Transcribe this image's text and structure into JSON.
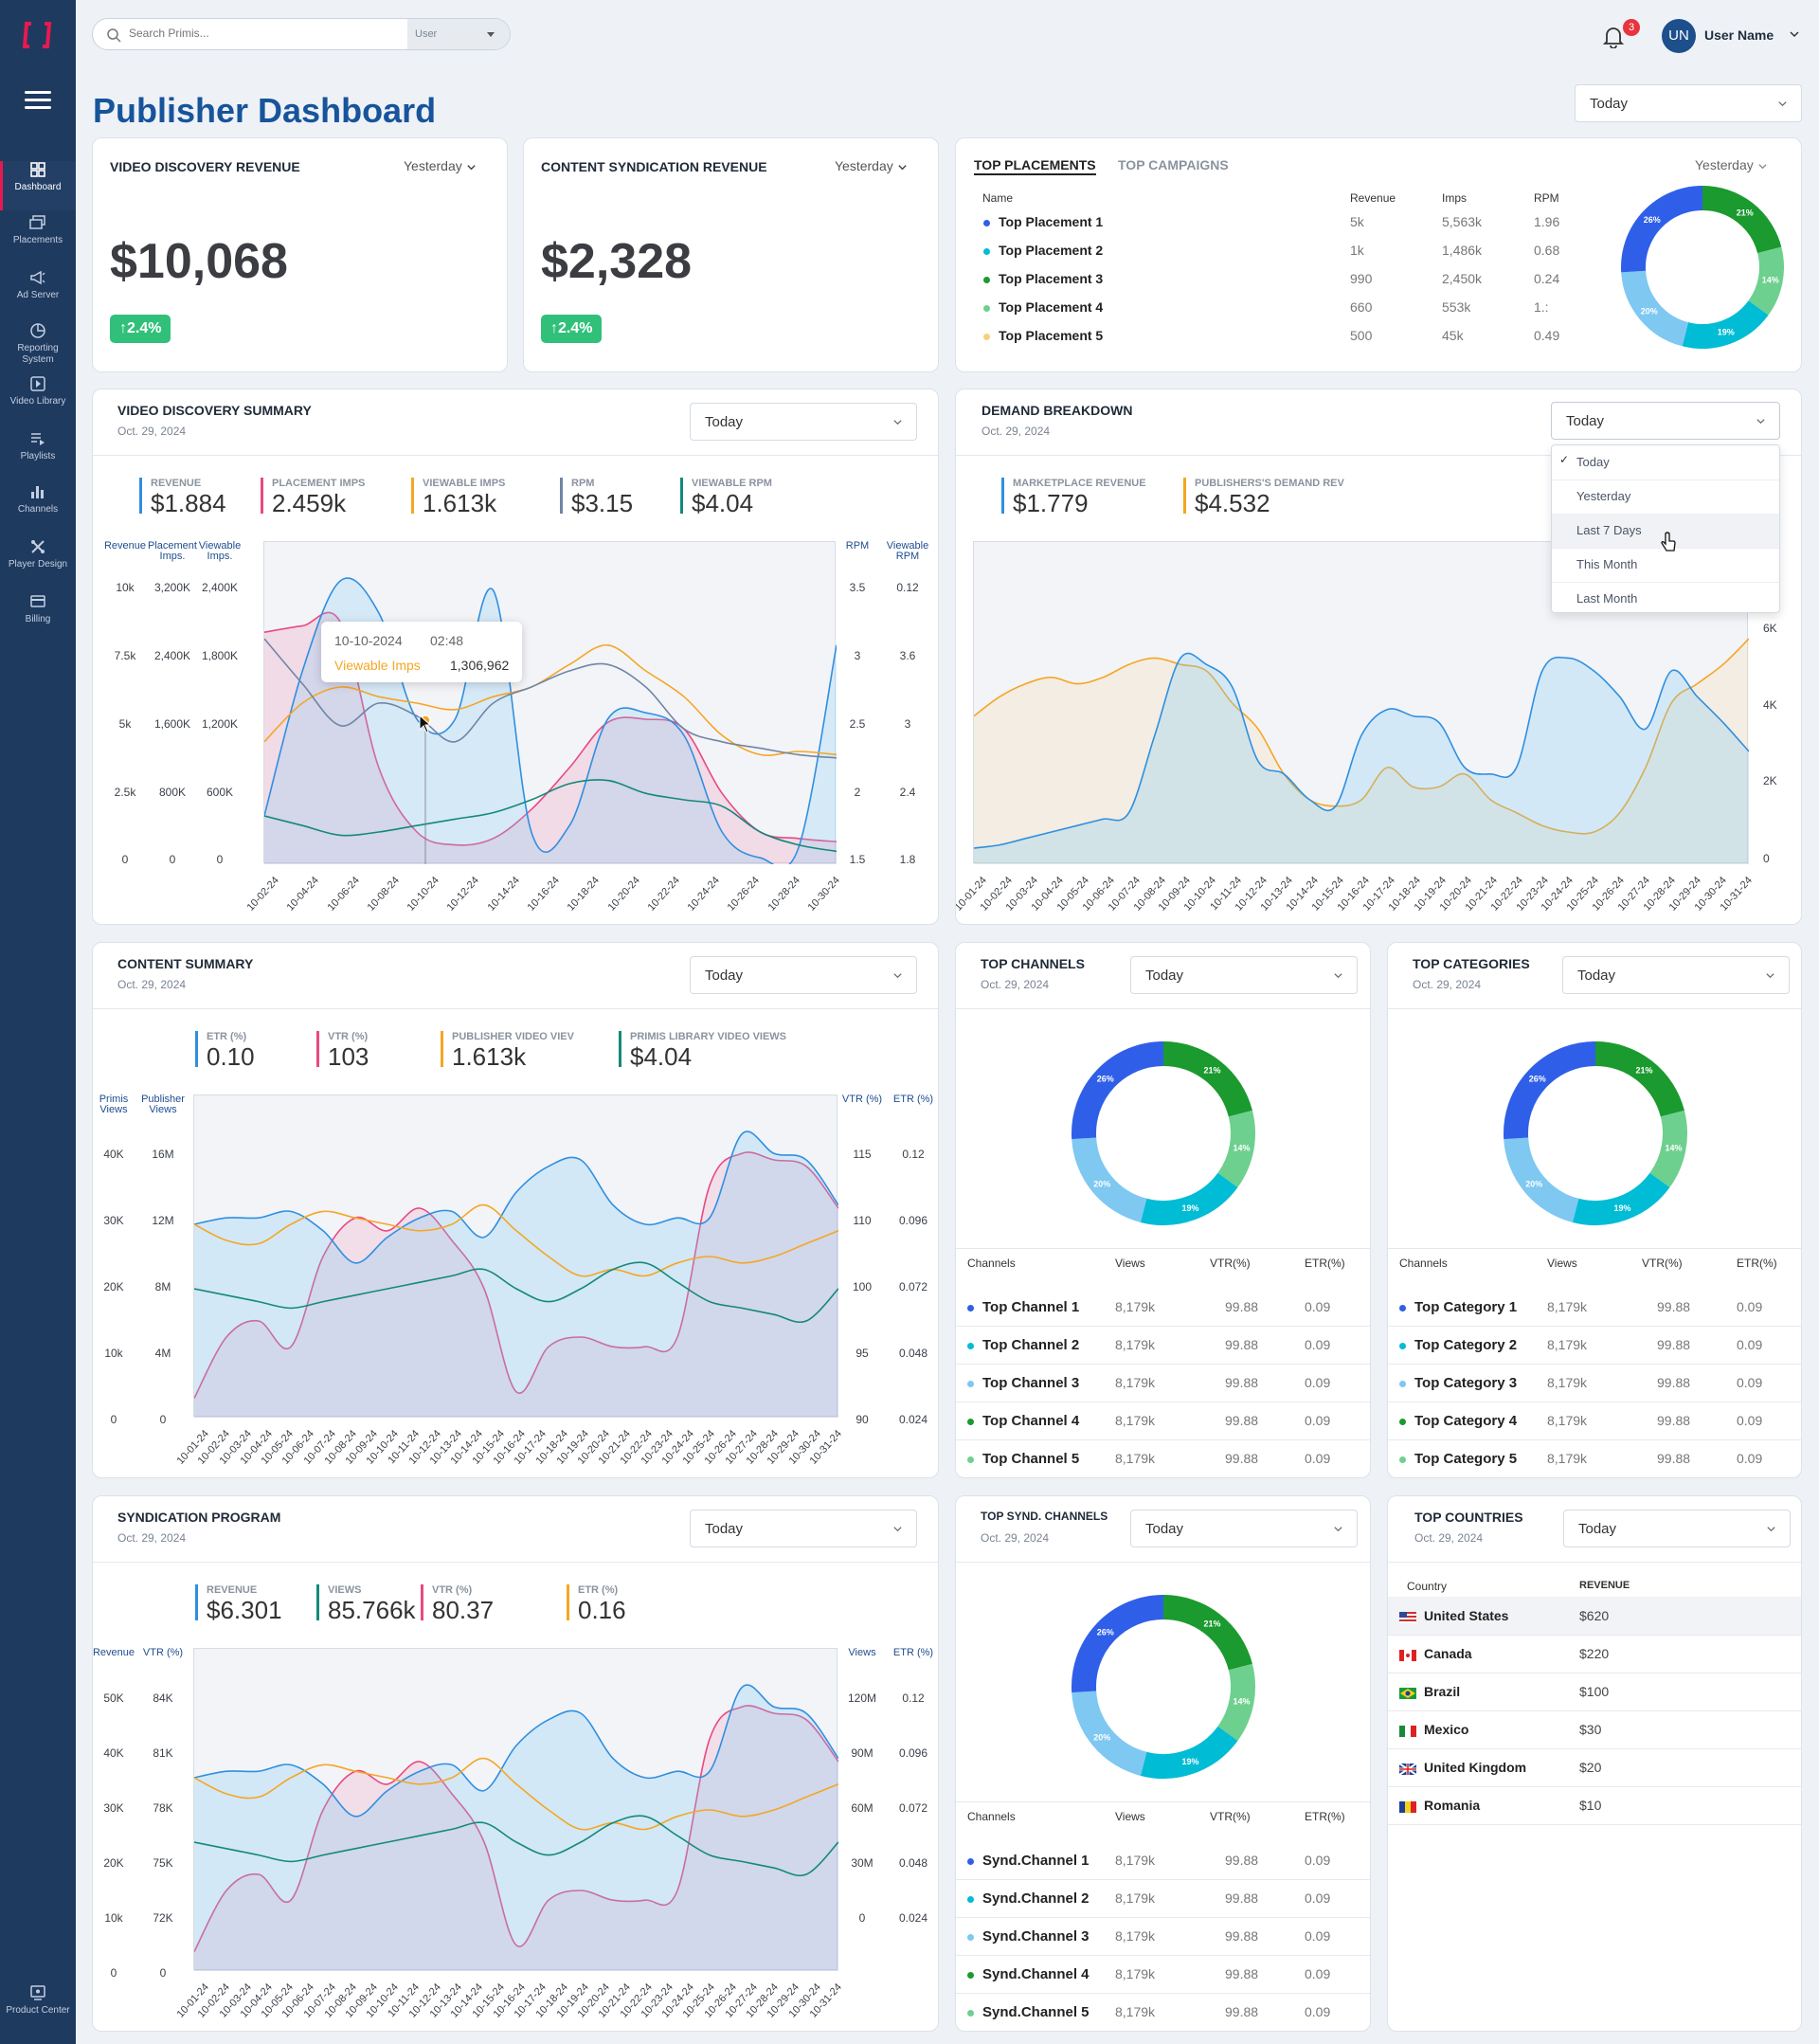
{
  "app": {
    "title": "Publisher Dashboard",
    "notifications": "3",
    "avatar_initials": "UN",
    "user_name": "User Name",
    "search_placeholder": "Search Primis...",
    "search_scope": "User",
    "global_range": "Today"
  },
  "nav": [
    {
      "label": "Dashboard",
      "icon": "dashboard-icon",
      "active": true
    },
    {
      "label": "Placements",
      "icon": "placements-icon"
    },
    {
      "label": "Ad Server",
      "icon": "ad-server-icon"
    },
    {
      "label": "Reporting System",
      "icon": "reporting-icon"
    },
    {
      "label": "Video Library",
      "icon": "video-library-icon"
    },
    {
      "label": "Playlists",
      "icon": "playlists-icon"
    },
    {
      "label": "Channels",
      "icon": "channels-icon"
    },
    {
      "label": "Player Design",
      "icon": "player-design-icon"
    },
    {
      "label": "Billing",
      "icon": "billing-icon"
    },
    {
      "label": "Product Center",
      "icon": "product-center-icon"
    }
  ],
  "colors": {
    "blue": "#2f5fe8",
    "green": "#1b9a2f",
    "lightgreen": "#6ed08e",
    "teal": "#00bcd4",
    "sky": "#7ec8f2",
    "pink": "#e84a82",
    "orange": "#f5a623",
    "darkteal": "#14897a",
    "slate": "#6f86a6"
  },
  "revenue_cards": [
    {
      "title": "VIDEO DISCOVERY REVENUE",
      "period": "Yesterday",
      "value": "$10,068",
      "change": "2.4%"
    },
    {
      "title": "CONTENT SYNDICATION REVENUE",
      "period": "Yesterday",
      "value": "$2,328",
      "change": "2.4%"
    }
  ],
  "top_placements": {
    "tabs": [
      "TOP PLACEMENTS",
      "TOP CAMPAIGNS"
    ],
    "period": "Yesterday",
    "headers": [
      "Name",
      "Revenue",
      "Imps",
      "RPM"
    ],
    "rows": [
      {
        "name": "Top Placement 1",
        "revenue": "5k",
        "imps": "5,563k",
        "rpm": "1.96",
        "color": "#2f5fe8"
      },
      {
        "name": "Top Placement 2",
        "revenue": "1k",
        "imps": "1,486k",
        "rpm": "0.68",
        "color": "#00bcd4"
      },
      {
        "name": "Top Placement 3",
        "revenue": "990",
        "imps": "2,450k",
        "rpm": "0.24",
        "color": "#1b9a2f"
      },
      {
        "name": "Top Placement 4",
        "revenue": "660",
        "imps": "553k",
        "rpm": "1.:",
        "color": "#6ed08e"
      },
      {
        "name": "Top Placement 5",
        "revenue": "500",
        "imps": "45k",
        "rpm": "0.49",
        "color": "#f5d27a"
      }
    ]
  },
  "donut": {
    "labels": [
      "21%",
      "14%",
      "19%",
      "20%",
      "26%"
    ],
    "values": [
      21,
      14,
      19,
      20,
      26
    ],
    "colors": [
      "#1b9a2f",
      "#6ed08e",
      "#00bcd4",
      "#7ec8f2",
      "#2f5fe8"
    ]
  },
  "video_summary": {
    "title": "VIDEO DISCOVERY SUMMARY",
    "date": "Oct. 29, 2024",
    "period": "Today",
    "kpis": [
      {
        "label": "REVENUE",
        "value": "$1.884",
        "color": "#2f8fe0"
      },
      {
        "label": "PLACEMENT IMPS",
        "value": "2.459k",
        "color": "#e84a82"
      },
      {
        "label": "VIEWABLE IMPS",
        "value": "1.613k",
        "color": "#f5a623"
      },
      {
        "label": "RPM",
        "value": "$3.15",
        "color": "#6f86a6"
      },
      {
        "label": "VIEWABLE RPM",
        "value": "$4.04",
        "color": "#14897a"
      }
    ],
    "left_axes": [
      {
        "label": "Revenue",
        "ticks": [
          "10k",
          "7.5k",
          "5k",
          "2.5k",
          "0"
        ]
      },
      {
        "label": "Placement Imps.",
        "ticks": [
          "3,200K",
          "2,400K",
          "1,600K",
          "800K",
          "0"
        ]
      },
      {
        "label": "Viewable Imps.",
        "ticks": [
          "2,400K",
          "1,800K",
          "1,200K",
          "600K",
          "0"
        ]
      }
    ],
    "right_axes": [
      {
        "label": "RPM",
        "ticks": [
          "3.5",
          "3",
          "2.5",
          "2",
          "1.5"
        ]
      },
      {
        "label": "Viewable RPM",
        "ticks": [
          "0.12",
          "3.6",
          "3",
          "2.4",
          "1.8"
        ]
      }
    ],
    "x_ticks": [
      "10-02-24",
      "10-04-24",
      "10-06-24",
      "10-08-24",
      "10-10-24",
      "10-12-24",
      "10-14-24",
      "10-16-24",
      "10-18-24",
      "10-20-24",
      "10-22-24",
      "10-24-24",
      "10-26-24",
      "10-28-24",
      "10-30-24"
    ],
    "tooltip": {
      "date": "10-10-2024",
      "time": "02:48",
      "series": "Viewable Imps",
      "value": "1,306,962"
    }
  },
  "demand_breakdown": {
    "title": "DEMAND BREAKDOWN",
    "date": "Oct. 29, 2024",
    "period": "Today",
    "kpis": [
      {
        "label": "MARKETPLACE REVENUE",
        "value": "$1.779",
        "color": "#2f8fe0"
      },
      {
        "label": "PUBLISHERS'S DEMAND REV",
        "value": "$4.532",
        "color": "#f5a623"
      }
    ],
    "right_ticks": [
      "6K",
      "4K",
      "2K",
      "0"
    ],
    "x_ticks": [
      "10-01-24",
      "10-02-24",
      "10-03-24",
      "10-04-24",
      "10-05-24",
      "10-06-24",
      "10-07-24",
      "10-08-24",
      "10-09-24",
      "10-10-24",
      "10-11-24",
      "10-12-24",
      "10-13-24",
      "10-14-24",
      "10-15-24",
      "10-16-24",
      "10-17-24",
      "10-18-24",
      "10-19-24",
      "10-20-24",
      "10-21-24",
      "10-22-24",
      "10-23-24",
      "10-24-24",
      "10-25-24",
      "10-26-24",
      "10-27-24",
      "10-28-24",
      "10-29-24",
      "10-30-24",
      "10-31-24"
    ],
    "dropdown": [
      "Today",
      "Yesterday",
      "Last 7 Days",
      "This Month",
      "Last Month"
    ]
  },
  "content_summary": {
    "title": "CONTENT SUMMARY",
    "date": "Oct. 29, 2024",
    "period": "Today",
    "kpis": [
      {
        "label": "ETR (%)",
        "value": "0.10",
        "color": "#2f8fe0"
      },
      {
        "label": "VTR (%)",
        "value": "103",
        "color": "#e84a82"
      },
      {
        "label": "PUBLISHER VIDEO VIEV",
        "value": "1.613k",
        "color": "#f5a623"
      },
      {
        "label": "PRIMIS LIBRARY VIDEO VIEWS",
        "value": "$4.04",
        "color": "#14897a"
      }
    ],
    "left_axes": [
      {
        "label": "Primis Views",
        "ticks": [
          "40K",
          "30K",
          "20K",
          "10k",
          "0"
        ]
      },
      {
        "label": "Publisher Views",
        "ticks": [
          "16M",
          "12M",
          "8M",
          "4M",
          "0"
        ]
      }
    ],
    "right_axes": [
      {
        "label": "VTR (%)",
        "ticks": [
          "115",
          "110",
          "100",
          "95",
          "90"
        ]
      },
      {
        "label": "ETR (%)",
        "ticks": [
          "0.12",
          "0.096",
          "0.072",
          "0.048",
          "0.024"
        ]
      }
    ]
  },
  "syndication": {
    "title": "SYNDICATION PROGRAM",
    "date": "Oct. 29, 2024",
    "period": "Today",
    "kpis": [
      {
        "label": "REVENUE",
        "value": "$6.301",
        "color": "#2f8fe0"
      },
      {
        "label": "VIEWS",
        "value": "85.766k",
        "color": "#14897a"
      },
      {
        "label": "VTR (%)",
        "value": "80.37",
        "color": "#e84a82"
      },
      {
        "label": "ETR (%)",
        "value": "0.16",
        "color": "#f5a623"
      }
    ],
    "left_axes": [
      {
        "label": "Revenue",
        "ticks": [
          "50K",
          "40K",
          "30K",
          "20K",
          "10k",
          "0"
        ]
      },
      {
        "label": "VTR (%)",
        "ticks": [
          "84K",
          "81K",
          "78K",
          "75K",
          "72K",
          "0"
        ]
      }
    ],
    "right_axes": [
      {
        "label": "Views",
        "ticks": [
          "120M",
          "90M",
          "60M",
          "30M",
          "0"
        ]
      },
      {
        "label": "ETR (%)",
        "ticks": [
          "0.12",
          "0.096",
          "0.072",
          "0.048",
          "0.024"
        ]
      }
    ]
  },
  "top_channels": {
    "title": "TOP CHANNELS",
    "date": "Oct. 29, 2024",
    "period": "Today",
    "headers": [
      "Channels",
      "Views",
      "VTR(%)",
      "ETR(%)"
    ],
    "rows": [
      {
        "name": "Top Channel 1",
        "views": "8,179k",
        "vtr": "99.88",
        "etr": "0.09",
        "color": "#2f5fe8"
      },
      {
        "name": "Top Channel 2",
        "views": "8,179k",
        "vtr": "99.88",
        "etr": "0.09",
        "color": "#00bcd4"
      },
      {
        "name": "Top Channel 3",
        "views": "8,179k",
        "vtr": "99.88",
        "etr": "0.09",
        "color": "#7ec8f2"
      },
      {
        "name": "Top Channel 4",
        "views": "8,179k",
        "vtr": "99.88",
        "etr": "0.09",
        "color": "#1b9a2f"
      },
      {
        "name": "Top Channel 5",
        "views": "8,179k",
        "vtr": "99.88",
        "etr": "0.09",
        "color": "#6ed08e"
      }
    ]
  },
  "top_categories": {
    "title": "TOP CATEGORIES",
    "date": "Oct. 29, 2024",
    "period": "Today",
    "headers": [
      "Channels",
      "Views",
      "VTR(%)",
      "ETR(%)"
    ],
    "rows": [
      {
        "name": "Top Category 1",
        "views": "8,179k",
        "vtr": "99.88",
        "etr": "0.09",
        "color": "#2f5fe8"
      },
      {
        "name": "Top Category 2",
        "views": "8,179k",
        "vtr": "99.88",
        "etr": "0.09",
        "color": "#00bcd4"
      },
      {
        "name": "Top Category 3",
        "views": "8,179k",
        "vtr": "99.88",
        "etr": "0.09",
        "color": "#7ec8f2"
      },
      {
        "name": "Top Category 4",
        "views": "8,179k",
        "vtr": "99.88",
        "etr": "0.09",
        "color": "#1b9a2f"
      },
      {
        "name": "Top Category 5",
        "views": "8,179k",
        "vtr": "99.88",
        "etr": "0.09",
        "color": "#6ed08e"
      }
    ]
  },
  "top_synd_channels": {
    "title": "TOP SYND. CHANNELS",
    "date": "Oct. 29, 2024",
    "period": "Today",
    "headers": [
      "Channels",
      "Views",
      "VTR(%)",
      "ETR(%)"
    ],
    "rows": [
      {
        "name": "Synd.Channel 1",
        "views": "8,179k",
        "vtr": "99.88",
        "etr": "0.09",
        "color": "#2f5fe8"
      },
      {
        "name": "Synd.Channel 2",
        "views": "8,179k",
        "vtr": "99.88",
        "etr": "0.09",
        "color": "#00bcd4"
      },
      {
        "name": "Synd.Channel 3",
        "views": "8,179k",
        "vtr": "99.88",
        "etr": "0.09",
        "color": "#7ec8f2"
      },
      {
        "name": "Synd.Channel 4",
        "views": "8,179k",
        "vtr": "99.88",
        "etr": "0.09",
        "color": "#1b9a2f"
      },
      {
        "name": "Synd.Channel 5",
        "views": "8,179k",
        "vtr": "99.88",
        "etr": "0.09",
        "color": "#6ed08e"
      }
    ]
  },
  "top_countries": {
    "title": "TOP COUNTRIES",
    "date": "Oct. 29, 2024",
    "period": "Today",
    "headers": [
      "Country",
      "REVENUE"
    ],
    "rows": [
      {
        "name": "United States",
        "revenue": "$620",
        "flag": "us-flag-icon"
      },
      {
        "name": "Canada",
        "revenue": "$220",
        "flag": "canada-flag-icon"
      },
      {
        "name": "Brazil",
        "revenue": "$100",
        "flag": "brazil-flag-icon"
      },
      {
        "name": "Mexico",
        "revenue": "$30",
        "flag": "mexico-flag-icon"
      },
      {
        "name": "United Kingdom",
        "revenue": "$20",
        "flag": "uk-flag-icon"
      },
      {
        "name": "Romania",
        "revenue": "$10",
        "flag": "romania-flag-icon"
      }
    ]
  }
}
